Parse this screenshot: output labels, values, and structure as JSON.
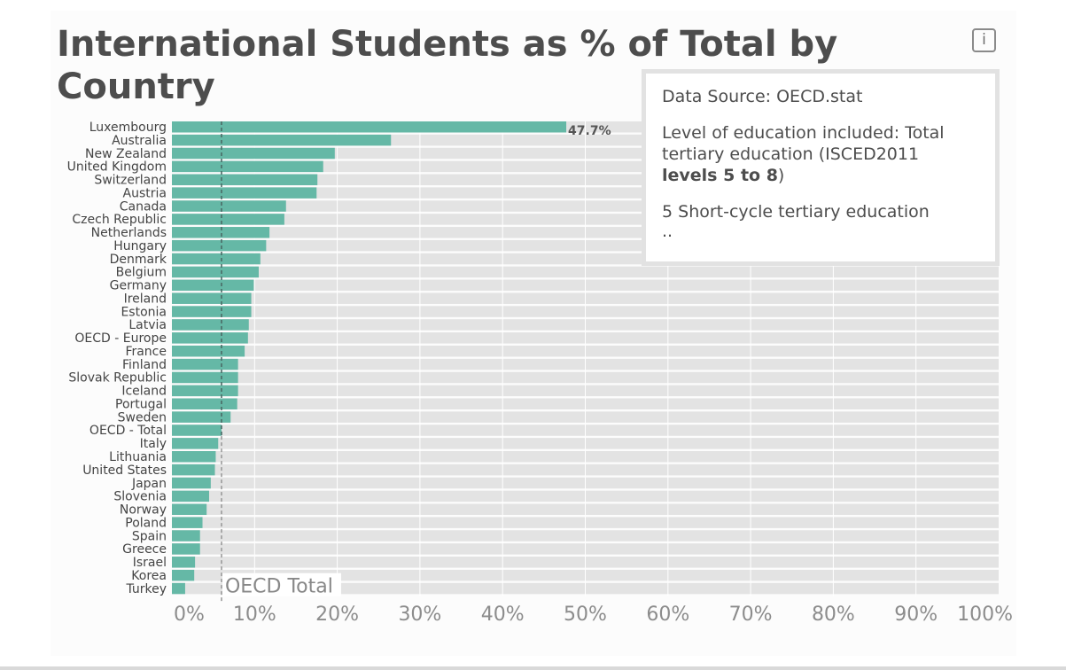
{
  "title": "International Students as % of Total by Country",
  "info_icon": {
    "glyph": "i",
    "name": "info-icon"
  },
  "tooltip": {
    "source": "Data Source: OECD.stat",
    "level_prefix": "Level of education included: Total tertiary education (ISCED2011 ",
    "level_bold": "levels 5 to 8",
    "level_suffix": ")",
    "item": "5 Short-cycle tertiary education",
    "more": ".."
  },
  "colors": {
    "bar": "#65b8a6",
    "track": "#e3e3e3",
    "reference_line": "#777777",
    "label_text": "#444444",
    "tick_text": "#8c8c8c"
  },
  "chart_data": {
    "type": "bar",
    "orientation": "horizontal",
    "title": "International Students as % of Total by Country",
    "categories": [
      "Luxembourg",
      "Australia",
      "New Zealand",
      "United Kingdom",
      "Switzerland",
      "Austria",
      "Canada",
      "Czech Republic",
      "Netherlands",
      "Hungary",
      "Denmark",
      "Belgium",
      "Germany",
      "Ireland",
      "Estonia",
      "Latvia",
      "OECD - Europe",
      "France",
      "Finland",
      "Slovak Republic",
      "Iceland",
      "Portugal",
      "Sweden",
      "OECD - Total",
      "Italy",
      "Lithuania",
      "United States",
      "Japan",
      "Slovenia",
      "Norway",
      "Poland",
      "Spain",
      "Greece",
      "Israel",
      "Korea",
      "Turkey"
    ],
    "values": [
      47.7,
      26.5,
      19.7,
      18.3,
      17.6,
      17.5,
      13.8,
      13.6,
      11.8,
      11.4,
      10.7,
      10.5,
      9.9,
      9.6,
      9.6,
      9.3,
      9.2,
      8.8,
      8.0,
      8.0,
      8.0,
      7.9,
      7.1,
      6.0,
      5.6,
      5.3,
      5.2,
      4.7,
      4.5,
      4.2,
      3.7,
      3.4,
      3.4,
      2.8,
      2.7,
      1.6
    ],
    "data_labels": [
      {
        "category": "Luxembourg",
        "text": "47.7%"
      }
    ],
    "xlim": [
      0,
      100
    ],
    "x_ticks": [
      "0%",
      "10%",
      "20%",
      "30%",
      "40%",
      "50%",
      "60%",
      "70%",
      "80%",
      "90%",
      "100%"
    ],
    "reference_line": {
      "label": "OECD Total",
      "value": 6.0
    },
    "grid": true,
    "legend": "none"
  }
}
